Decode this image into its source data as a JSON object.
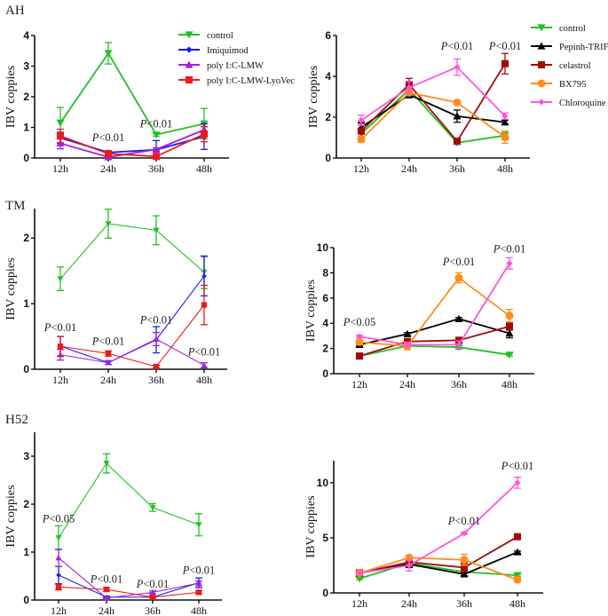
{
  "figure": {
    "panels_row_labels": [
      "AH",
      "TM",
      "H52"
    ]
  },
  "legends": {
    "left": [
      {
        "name": "control",
        "color": "#22c022",
        "marker": "triangle-down"
      },
      {
        "name": "Imiquimod",
        "color": "#1a1aee",
        "marker": "diamond"
      },
      {
        "name": "poly I:C-LMW",
        "color": "#a020e0",
        "marker": "triangle-up"
      },
      {
        "name": "poly I:C-LMW-LyoVec",
        "color": "#ee1a1a",
        "marker": "square"
      }
    ],
    "right": [
      {
        "name": "control",
        "color": "#22c022",
        "marker": "triangle-down"
      },
      {
        "name": "Pepinh-TRIF",
        "color": "#000000",
        "marker": "triangle-up"
      },
      {
        "name": "celastrol",
        "color": "#a00c0c",
        "marker": "square"
      },
      {
        "name": "BX795",
        "color": "#ff8c1a",
        "marker": "circle"
      },
      {
        "name": "Chloroquine",
        "color": "#ff55dd",
        "marker": "diamond"
      }
    ]
  },
  "chart_data": [
    {
      "id": "AH-left",
      "type": "line",
      "title": "AH",
      "xlabel": "",
      "ylabel": "IBV coppies",
      "categories": [
        "12h",
        "24h",
        "36h",
        "48h"
      ],
      "ylim": [
        0,
        4
      ],
      "yticks": [
        0,
        1,
        2,
        3,
        4
      ],
      "legend": "top-right",
      "series": [
        {
          "name": "control",
          "values": [
            1.15,
            3.42,
            0.76,
            1.12
          ],
          "err": [
            0.5,
            0.35,
            0.05,
            0.5
          ]
        },
        {
          "name": "Imiquimod",
          "values": [
            0.66,
            0.18,
            0.27,
            0.7
          ],
          "err": [
            0.18,
            0.05,
            0.3,
            0.42
          ]
        },
        {
          "name": "poly I:C-LMW",
          "values": [
            0.48,
            0.03,
            0.28,
            0.92
          ],
          "err": [
            0.18,
            0.03,
            0.05,
            0.1
          ]
        },
        {
          "name": "poly I:C-LMW-LyoVec",
          "values": [
            0.72,
            0.14,
            0.05,
            0.78
          ],
          "err": [
            0.22,
            0.05,
            0.03,
            0.25
          ]
        }
      ],
      "annotations": [
        {
          "text": "P<0.01",
          "x": "24h",
          "y": 0.55
        },
        {
          "text": "P<0.01",
          "x": "36h",
          "y": 1.0
        }
      ]
    },
    {
      "id": "AH-right",
      "type": "line",
      "title": "",
      "xlabel": "",
      "ylabel": "IBV coppies",
      "categories": [
        "12h",
        "24h",
        "36h",
        "48h"
      ],
      "ylim": [
        0,
        6
      ],
      "yticks": [
        0,
        2,
        4,
        6
      ],
      "legend": "top-right",
      "series": [
        {
          "name": "control",
          "values": [
            1.2,
            3.35,
            0.75,
            1.1
          ],
          "err": [
            0.2,
            0.3,
            0.05,
            0.2
          ]
        },
        {
          "name": "Pepinh-TRIF",
          "values": [
            1.5,
            3.1,
            2.05,
            1.75
          ],
          "err": [
            0.2,
            0.15,
            0.3,
            0.1
          ]
        },
        {
          "name": "celastrol",
          "values": [
            1.32,
            3.6,
            0.82,
            4.62
          ],
          "err": [
            0.45,
            0.3,
            0.05,
            0.5
          ]
        },
        {
          "name": "BX795",
          "values": [
            0.92,
            3.2,
            2.72,
            1.02
          ],
          "err": [
            0.15,
            0.1,
            0.05,
            0.3
          ]
        },
        {
          "name": "Chloroquine",
          "values": [
            1.85,
            3.45,
            4.45,
            2.05
          ],
          "err": [
            0.25,
            0.3,
            0.4,
            0.15
          ]
        }
      ],
      "annotations": [
        {
          "text": "P<0.01",
          "x": "36h",
          "y": 5.3
        },
        {
          "text": "P<0.01",
          "x": "48h",
          "y": 5.3
        }
      ]
    },
    {
      "id": "TM-left",
      "type": "line",
      "title": "TM",
      "xlabel": "",
      "ylabel": "IBV coppies",
      "categories": [
        "12h",
        "24h",
        "36h",
        "48h"
      ],
      "ylim": [
        0,
        2.45
      ],
      "yticks": [
        0,
        1,
        2
      ],
      "legend": "none",
      "series": [
        {
          "name": "control",
          "values": [
            1.38,
            2.22,
            2.12,
            1.48
          ],
          "err": [
            0.18,
            0.22,
            0.22,
            0.25
          ]
        },
        {
          "name": "Imiquimod",
          "values": [
            0.35,
            0.1,
            0.45,
            1.42
          ],
          "err": [
            0.15,
            0.03,
            0.2,
            0.3
          ]
        },
        {
          "name": "poly I:C-LMW",
          "values": [
            0.22,
            0.1,
            0.46,
            0.06
          ],
          "err": [
            0.08,
            0.03,
            0.1,
            0.04
          ]
        },
        {
          "name": "poly I:C-LMW-LyoVec",
          "values": [
            0.35,
            0.24,
            0.04,
            0.98
          ],
          "err": [
            0.15,
            0.04,
            0.02,
            0.3
          ]
        }
      ],
      "annotations": [
        {
          "text": "P<0.01",
          "x": "12h",
          "y": 0.58
        },
        {
          "text": "P<0.01",
          "x": "24h",
          "y": 0.37
        },
        {
          "text": "P<0.01",
          "x": "36h",
          "y": 0.7
        },
        {
          "text": "P<0.01",
          "x": "48h",
          "y": 0.21
        }
      ]
    },
    {
      "id": "TM-right",
      "type": "line",
      "title": "",
      "xlabel": "",
      "ylabel": "IBV coppies",
      "categories": [
        "12h",
        "24h",
        "36h",
        "48h"
      ],
      "ylim": [
        0,
        10
      ],
      "yticks": [
        0,
        2,
        4,
        6,
        8,
        10
      ],
      "legend": "none",
      "series": [
        {
          "name": "control",
          "values": [
            1.4,
            2.2,
            2.1,
            1.5
          ],
          "err": [
            0.1,
            0.15,
            0.15,
            0.1
          ]
        },
        {
          "name": "Pepinh-TRIF",
          "values": [
            2.3,
            3.15,
            4.35,
            3.2
          ],
          "err": [
            0.1,
            0.1,
            0.1,
            0.35
          ]
        },
        {
          "name": "celastrol",
          "values": [
            1.4,
            2.55,
            2.65,
            3.75
          ],
          "err": [
            0.1,
            0.15,
            0.15,
            0.3
          ]
        },
        {
          "name": "BX795",
          "values": [
            2.5,
            2.2,
            7.6,
            4.6
          ],
          "err": [
            0.15,
            0.3,
            0.4,
            0.5
          ]
        },
        {
          "name": "Chloroquine",
          "values": [
            2.95,
            2.3,
            2.3,
            8.75
          ],
          "err": [
            0.1,
            0.15,
            0.3,
            0.45
          ]
        }
      ],
      "annotations": [
        {
          "text": "P<0.05",
          "x": "12h",
          "y": 3.8
        },
        {
          "text": "P<0.01",
          "x": "36h",
          "y": 8.6
        },
        {
          "text": "P<0.01",
          "x": "48h",
          "y": 9.6
        }
      ]
    },
    {
      "id": "H52-left",
      "type": "line",
      "title": "H52",
      "xlabel": "",
      "ylabel": "IBV coppies",
      "categories": [
        "12h",
        "24h",
        "36h",
        "48h"
      ],
      "ylim": [
        0,
        3.5
      ],
      "yticks": [
        0,
        1,
        2,
        3
      ],
      "legend": "none",
      "series": [
        {
          "name": "control",
          "values": [
            1.3,
            2.85,
            1.93,
            1.57
          ],
          "err": [
            0.25,
            0.2,
            0.08,
            0.23
          ]
        },
        {
          "name": "Imiquimod",
          "values": [
            0.52,
            0.06,
            0.06,
            0.36
          ],
          "err": [
            0.18,
            0.02,
            0.02,
            0.1
          ]
        },
        {
          "name": "poly I:C-LMW",
          "values": [
            0.88,
            0.04,
            0.16,
            0.35
          ],
          "err": [
            0.18,
            0.02,
            0.03,
            0.05
          ]
        },
        {
          "name": "poly I:C-LMW-LyoVec",
          "values": [
            0.27,
            0.22,
            0.06,
            0.16
          ],
          "err": [
            0.06,
            0.04,
            0.02,
            0.03
          ]
        }
      ],
      "annotations": [
        {
          "text": "P<0.05",
          "x": "12h",
          "y": 1.62
        },
        {
          "text": "P<0.01",
          "x": "24h",
          "y": 0.36
        },
        {
          "text": "P<0.01",
          "x": "36h",
          "y": 0.26
        },
        {
          "text": "P<0.01",
          "x": "48h",
          "y": 0.55
        }
      ]
    },
    {
      "id": "H52-right",
      "type": "line",
      "title": "",
      "xlabel": "",
      "ylabel": "IBV coppies",
      "categories": [
        "12h",
        "24h",
        "36h",
        "48h"
      ],
      "ylim": [
        0,
        12
      ],
      "yticks": [
        0,
        5,
        10
      ],
      "legend": "none",
      "series": [
        {
          "name": "control",
          "values": [
            1.3,
            2.7,
            1.9,
            1.6
          ],
          "err": [
            0.1,
            0.2,
            0.1,
            0.1
          ]
        },
        {
          "name": "Pepinh-TRIF",
          "values": [
            1.8,
            2.6,
            1.7,
            3.7
          ],
          "err": [
            0.1,
            0.3,
            0.15,
            0.1
          ]
        },
        {
          "name": "celastrol",
          "values": [
            1.8,
            2.8,
            2.3,
            5.1
          ],
          "err": [
            0.3,
            0.3,
            0.4,
            0.1
          ]
        },
        {
          "name": "BX795",
          "values": [
            1.8,
            3.2,
            3.0,
            1.2
          ],
          "err": [
            0.1,
            0.1,
            0.5,
            0.1
          ]
        },
        {
          "name": "Chloroquine",
          "values": [
            1.8,
            2.5,
            5.4,
            10.0
          ],
          "err": [
            0.1,
            0.5,
            0.1,
            0.5
          ]
        }
      ],
      "annotations": [
        {
          "text": "P<0.01",
          "x": "36h",
          "y": 6.2
        },
        {
          "text": "P<0.01",
          "x": "48h",
          "y": 11.2
        }
      ]
    }
  ]
}
